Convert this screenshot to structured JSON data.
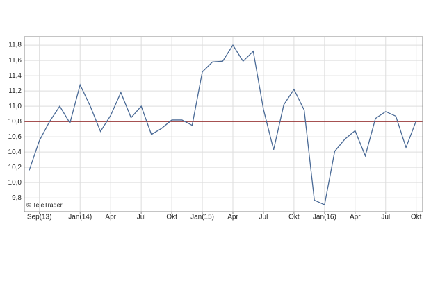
{
  "chart_data": {
    "type": "line",
    "categories": [
      null,
      "Sep(13)",
      null,
      null,
      null,
      "Jan(14)",
      null,
      null,
      "Apr",
      null,
      null,
      "Jul",
      null,
      null,
      "Okt",
      null,
      null,
      "Jan(15)",
      null,
      null,
      "Apr",
      null,
      null,
      "Jul",
      null,
      null,
      "Okt",
      null,
      null,
      "Jan(16)",
      null,
      null,
      "Apr",
      null,
      null,
      "Jul",
      null,
      null,
      "Okt"
    ],
    "series": [
      {
        "color": "#4a6a96",
        "values": [
          10.16,
          10.55,
          10.8,
          11.0,
          10.78,
          11.28,
          11.0,
          10.67,
          10.88,
          11.18,
          10.85,
          11.0,
          10.63,
          10.71,
          10.82,
          10.82,
          10.75,
          11.45,
          11.58,
          11.59,
          11.8,
          11.59,
          11.72,
          10.96,
          10.43,
          11.02,
          11.22,
          10.95,
          9.77,
          9.71,
          10.41,
          10.57,
          10.68,
          10.35,
          10.84,
          10.93,
          10.87,
          10.46,
          10.81
        ]
      }
    ],
    "reference_line": {
      "value": 10.8,
      "color": "#8b1a1a"
    },
    "ylim": [
      9.62,
      11.91
    ],
    "yticks": [
      {
        "value": 9.8,
        "label": "9,8"
      },
      {
        "value": 10.0,
        "label": "10,0"
      },
      {
        "value": 10.2,
        "label": "10,2"
      },
      {
        "value": 10.4,
        "label": "10,4"
      },
      {
        "value": 10.6,
        "label": "10,6"
      },
      {
        "value": 10.8,
        "label": "10,8"
      },
      {
        "value": 11.0,
        "label": "11,0"
      },
      {
        "value": 11.2,
        "label": "11,2"
      },
      {
        "value": 11.4,
        "label": "11,4"
      },
      {
        "value": 11.6,
        "label": "11,6"
      },
      {
        "value": 11.8,
        "label": "11,8"
      }
    ],
    "grid": true,
    "watermark": "© TeleTrader"
  }
}
